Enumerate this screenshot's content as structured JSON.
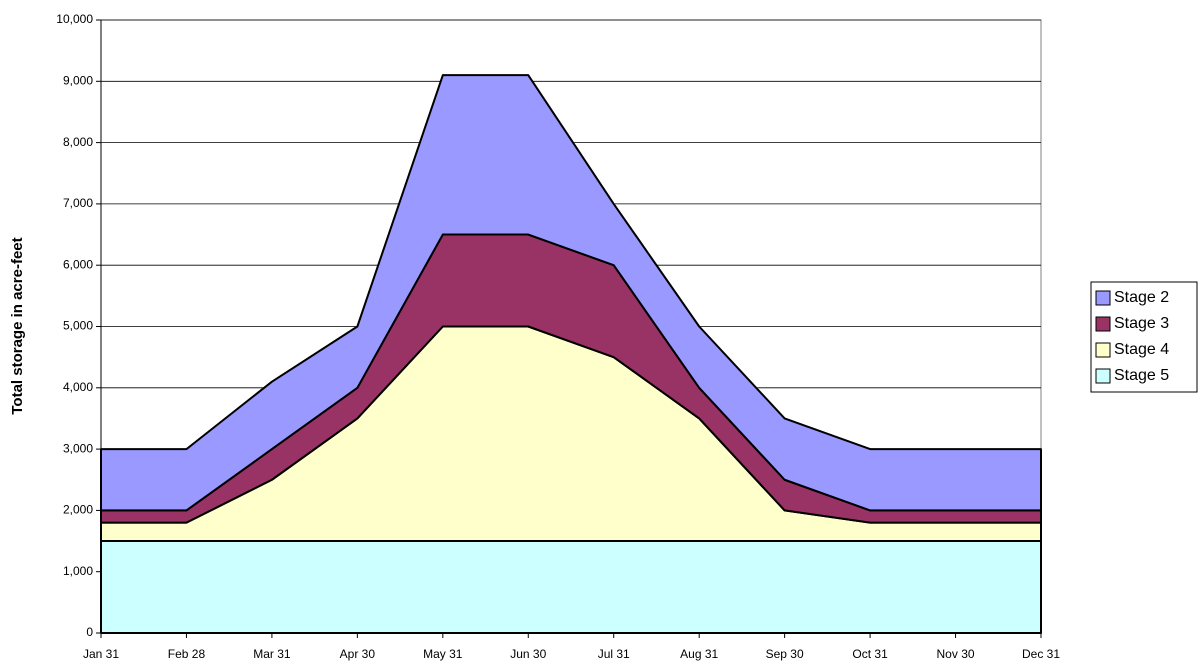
{
  "chart_data": {
    "type": "stacked-area",
    "y_label": "Total storage in acre-feet",
    "categories": [
      "Jan 31",
      "Feb 28",
      "Mar 31",
      "Apr 30",
      "May 31",
      "Jun 30",
      "Jul 31",
      "Aug 31",
      "Sep 30",
      "Oct 31",
      "Nov 30",
      "Dec 31"
    ],
    "series": [
      {
        "name": "Stage 2",
        "color": "#9999ff",
        "values": [
          1000,
          1000,
          1100,
          1000,
          2600,
          2600,
          1000,
          1000,
          1000,
          1000,
          1000,
          1000
        ]
      },
      {
        "name": "Stage 3",
        "color": "#993366",
        "values": [
          200,
          200,
          500,
          500,
          1500,
          1500,
          1500,
          500,
          500,
          200,
          200,
          200
        ]
      },
      {
        "name": "Stage 4",
        "color": "#ffffcc",
        "values": [
          300,
          300,
          1000,
          2000,
          3500,
          3500,
          3000,
          2000,
          500,
          300,
          300,
          300
        ]
      },
      {
        "name": "Stage 5",
        "color": "#ccffff",
        "values": [
          1500,
          1500,
          1500,
          1500,
          1500,
          1500,
          1500,
          1500,
          1500,
          1500,
          1500,
          1500
        ]
      }
    ],
    "ylim": [
      0,
      10000
    ],
    "yticks": [
      0,
      {
        "value": 1000,
        "label": "1,000"
      },
      {
        "value": 2000,
        "label": "2,000"
      },
      {
        "value": 3000,
        "label": "3,000"
      },
      {
        "value": 4000,
        "label": "4,000"
      },
      {
        "value": 5000,
        "label": "5,000"
      },
      {
        "value": 6000,
        "label": "6,000"
      },
      {
        "value": 7000,
        "label": "7,000"
      },
      {
        "value": 8000,
        "label": "8,000"
      },
      {
        "value": 9000,
        "label": "9,000"
      },
      {
        "value": 10000,
        "label": "10,000"
      }
    ],
    "grid": true,
    "legend": "right"
  }
}
